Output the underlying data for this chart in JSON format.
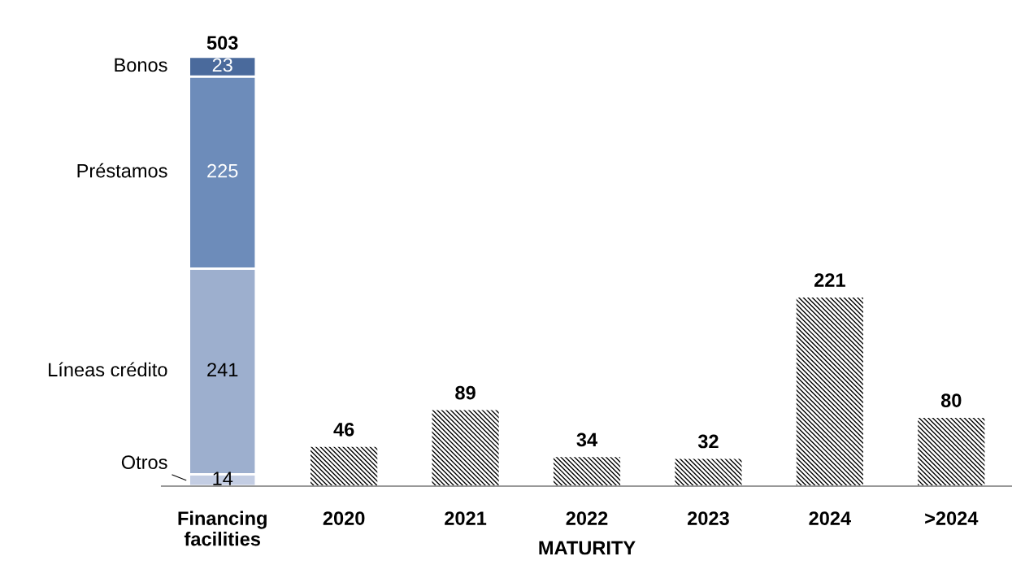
{
  "chart_data": {
    "type": "bar",
    "stacked": true,
    "xlabel": "MATURITY",
    "categories": [
      "Financing\nfacilities",
      "2020",
      "2021",
      "2022",
      "2023",
      "2024",
      ">2024"
    ],
    "series": [
      {
        "name": "Otros",
        "color": "#c3cde3",
        "values": [
          14,
          null,
          null,
          null,
          null,
          null,
          null
        ]
      },
      {
        "name": "Líneas crédito",
        "color": "#9dafce",
        "values": [
          241,
          null,
          null,
          null,
          null,
          null,
          null
        ]
      },
      {
        "name": "Préstamos",
        "color": "#6d8cba",
        "values": [
          225,
          null,
          null,
          null,
          null,
          null,
          null
        ]
      },
      {
        "name": "Bonos",
        "color": "#4a6a9c",
        "values": [
          23,
          null,
          null,
          null,
          null,
          null,
          null
        ]
      },
      {
        "color": "#000000",
        "values": [
          null,
          46,
          89,
          34,
          32,
          221,
          80
        ]
      }
    ],
    "totals": [
      "503",
      null,
      null,
      null,
      null,
      null,
      null
    ],
    "data_labels": true,
    "tick_labels": "x",
    "grid": false,
    "legend": "left"
  }
}
